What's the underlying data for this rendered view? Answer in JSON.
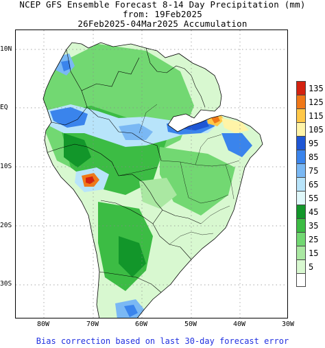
{
  "title": {
    "line1": "NCEP GFS Ensemble Forecast 8-14 Day Precipitation (mm)",
    "line2": "from: 19Feb2025",
    "line3": "26Feb2025-04Mar2025 Accumulation"
  },
  "map": {
    "lat_labels": [
      "10N",
      "EQ",
      "10S",
      "20S",
      "30S"
    ],
    "lon_labels": [
      "80W",
      "70W",
      "60W",
      "50W",
      "40W",
      "30W"
    ],
    "extent": {
      "lon_min": -85,
      "lon_max": -30,
      "lat_min": -36,
      "lat_max": 13
    },
    "grid_lines": "dotted",
    "features": [
      {
        "value": 55,
        "lon": -77,
        "lat": 7
      },
      {
        "value": 60,
        "lon": -74,
        "lat": 1
      },
      {
        "value": 55,
        "lon": -66,
        "lat": -3
      },
      {
        "value": 85,
        "lon": -64,
        "lat": -4
      },
      {
        "value": 75,
        "lon": -57,
        "lat": -5
      },
      {
        "value": 90,
        "lon": -52,
        "lat": -4
      },
      {
        "value": 95,
        "lon": -48,
        "lat": -2
      },
      {
        "value": 125,
        "lon": -45,
        "lat": -2
      },
      {
        "value": 105,
        "lon": -43,
        "lat": -3
      },
      {
        "value": 65,
        "lon": -70,
        "lat": -13
      },
      {
        "value": 135,
        "lon": -70,
        "lat": -12.5
      },
      {
        "value": 45,
        "lon": -64,
        "lat": -10
      },
      {
        "value": 35,
        "lon": -57,
        "lat": -20
      },
      {
        "value": 45,
        "lon": -62,
        "lat": -30
      },
      {
        "value": 85,
        "lon": -59,
        "lat": -35
      }
    ]
  },
  "legend": {
    "items": [
      {
        "label": "135",
        "color": "#d42210"
      },
      {
        "label": "125",
        "color": "#f07818"
      },
      {
        "label": "115",
        "color": "#ffc848"
      },
      {
        "label": "105",
        "color": "#fff4a8"
      },
      {
        "label": "95",
        "color": "#1e56d4"
      },
      {
        "label": "85",
        "color": "#3a84ec"
      },
      {
        "label": "75",
        "color": "#7ab8f4"
      },
      {
        "label": "65",
        "color": "#b8e4fa"
      },
      {
        "label": "55",
        "color": "#e0f8fa"
      },
      {
        "label": "45",
        "color": "#12962a"
      },
      {
        "label": "35",
        "color": "#3cbc44"
      },
      {
        "label": "25",
        "color": "#72d872"
      },
      {
        "label": "15",
        "color": "#aae8a2"
      },
      {
        "label": "5",
        "color": "#d8f8d0"
      },
      {
        "label": "",
        "color": "#ffffff"
      }
    ]
  },
  "footer": "Bias correction based on last 30-day forecast error"
}
